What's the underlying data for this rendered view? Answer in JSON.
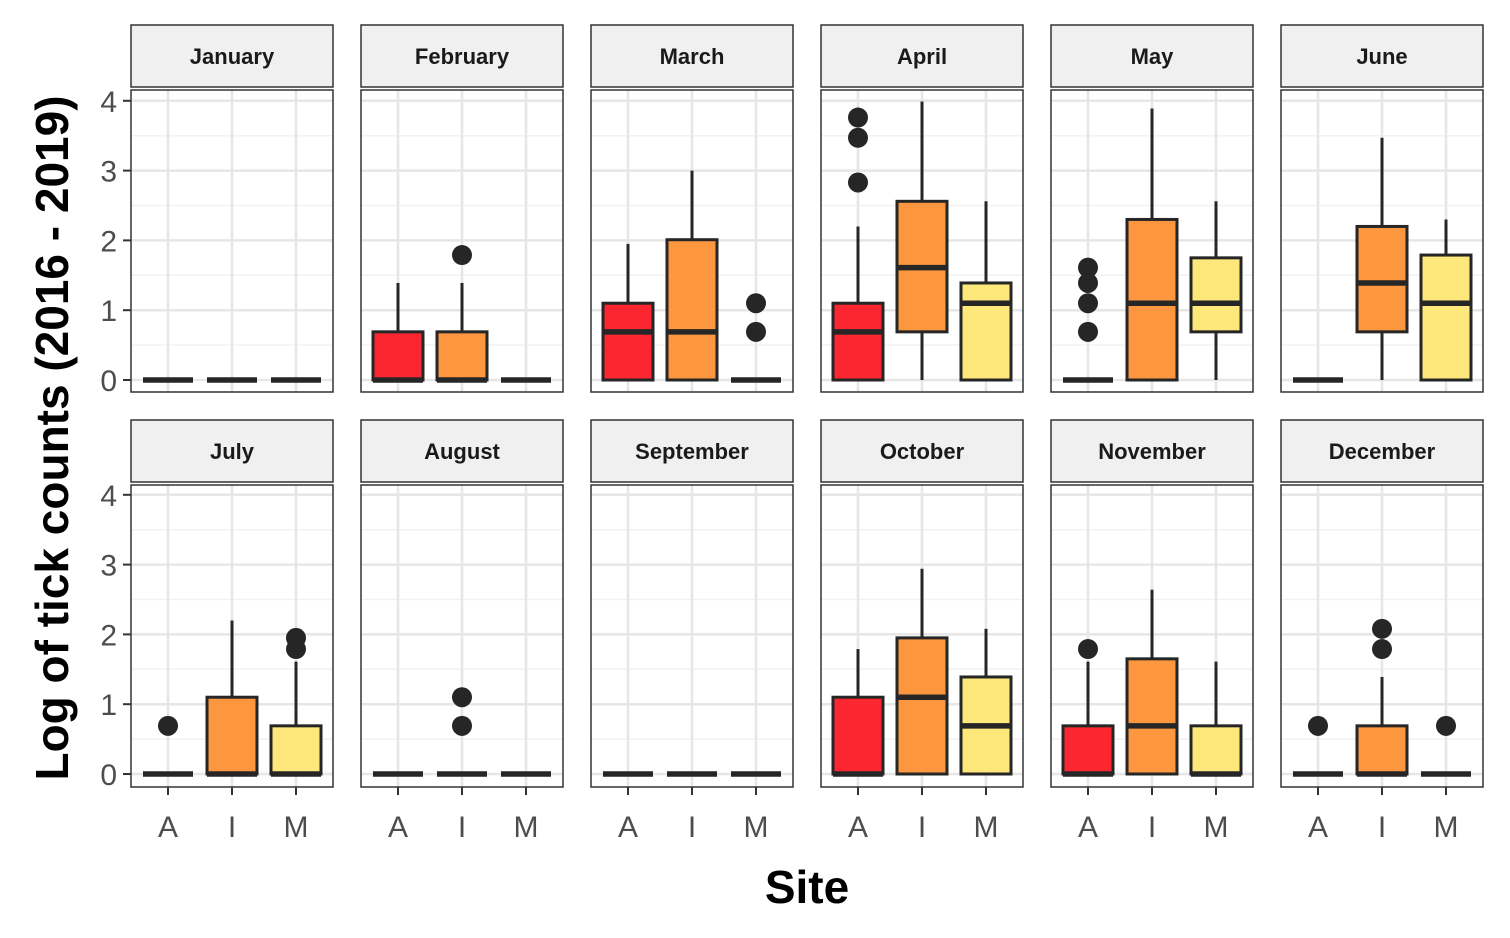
{
  "chart_data": {
    "type": "boxplot",
    "xlabel": "Site",
    "ylabel": "Log of tick counts (2016 - 2019)",
    "categories": [
      "A",
      "I",
      "M"
    ],
    "y_ticks": [
      0,
      1,
      2,
      3,
      4
    ],
    "ylim": [
      -0.1,
      4.15
    ],
    "colors": {
      "A": "#fb2630",
      "I": "#fc963f",
      "M": "#fee87c"
    },
    "grid": true,
    "panels": [
      {
        "month": "January",
        "boxes": [
          {
            "site": "A",
            "min": 0,
            "q1": 0,
            "median": 0,
            "q3": 0,
            "max": 0,
            "outliers": []
          },
          {
            "site": "I",
            "min": 0,
            "q1": 0,
            "median": 0,
            "q3": 0,
            "max": 0,
            "outliers": []
          },
          {
            "site": "M",
            "min": 0,
            "q1": 0,
            "median": 0,
            "q3": 0,
            "max": 0,
            "outliers": []
          }
        ]
      },
      {
        "month": "February",
        "boxes": [
          {
            "site": "A",
            "min": 0,
            "q1": 0,
            "median": 0,
            "q3": 0.69,
            "max": 1.39,
            "outliers": []
          },
          {
            "site": "I",
            "min": 0,
            "q1": 0,
            "median": 0,
            "q3": 0.69,
            "max": 1.39,
            "outliers": [
              1.79
            ]
          },
          {
            "site": "M",
            "min": 0,
            "q1": 0,
            "median": 0,
            "q3": 0,
            "max": 0,
            "outliers": []
          }
        ]
      },
      {
        "month": "March",
        "boxes": [
          {
            "site": "A",
            "min": 0,
            "q1": 0,
            "median": 0.69,
            "q3": 1.1,
            "max": 1.95,
            "outliers": []
          },
          {
            "site": "I",
            "min": 0,
            "q1": 0,
            "median": 0.69,
            "q3": 2.01,
            "max": 3.0,
            "outliers": []
          },
          {
            "site": "M",
            "min": 0,
            "q1": 0,
            "median": 0,
            "q3": 0,
            "max": 0,
            "outliers": [
              0.69,
              1.1
            ]
          }
        ]
      },
      {
        "month": "April",
        "boxes": [
          {
            "site": "A",
            "min": 0,
            "q1": 0,
            "median": 0.69,
            "q3": 1.1,
            "max": 2.2,
            "outliers": [
              2.83,
              3.47,
              3.76
            ]
          },
          {
            "site": "I",
            "min": 0,
            "q1": 0.69,
            "median": 1.61,
            "q3": 2.56,
            "max": 3.99,
            "outliers": []
          },
          {
            "site": "M",
            "min": 0,
            "q1": 0,
            "median": 1.1,
            "q3": 1.39,
            "max": 2.56,
            "outliers": []
          }
        ]
      },
      {
        "month": "May",
        "boxes": [
          {
            "site": "A",
            "min": 0,
            "q1": 0,
            "median": 0,
            "q3": 0,
            "max": 0,
            "outliers": [
              0.69,
              1.1,
              1.39,
              1.61
            ]
          },
          {
            "site": "I",
            "min": 0,
            "q1": 0,
            "median": 1.1,
            "q3": 2.3,
            "max": 3.89,
            "outliers": []
          },
          {
            "site": "M",
            "min": 0,
            "q1": 0.69,
            "median": 1.1,
            "q3": 1.75,
            "max": 2.56,
            "outliers": []
          }
        ]
      },
      {
        "month": "June",
        "boxes": [
          {
            "site": "A",
            "min": 0,
            "q1": 0,
            "median": 0,
            "q3": 0,
            "max": 0,
            "outliers": []
          },
          {
            "site": "I",
            "min": 0,
            "q1": 0.69,
            "median": 1.39,
            "q3": 2.2,
            "max": 3.47,
            "outliers": []
          },
          {
            "site": "M",
            "min": 0,
            "q1": 0,
            "median": 1.1,
            "q3": 1.79,
            "max": 2.3,
            "outliers": []
          }
        ]
      },
      {
        "month": "July",
        "boxes": [
          {
            "site": "A",
            "min": 0,
            "q1": 0,
            "median": 0,
            "q3": 0,
            "max": 0,
            "outliers": [
              0.69
            ]
          },
          {
            "site": "I",
            "min": 0,
            "q1": 0,
            "median": 0,
            "q3": 1.1,
            "max": 2.2,
            "outliers": []
          },
          {
            "site": "M",
            "min": 0,
            "q1": 0,
            "median": 0,
            "q3": 0.69,
            "max": 1.61,
            "outliers": [
              1.79,
              1.95
            ]
          }
        ]
      },
      {
        "month": "August",
        "boxes": [
          {
            "site": "A",
            "min": 0,
            "q1": 0,
            "median": 0,
            "q3": 0,
            "max": 0,
            "outliers": []
          },
          {
            "site": "I",
            "min": 0,
            "q1": 0,
            "median": 0,
            "q3": 0,
            "max": 0,
            "outliers": [
              0.69,
              1.1
            ]
          },
          {
            "site": "M",
            "min": 0,
            "q1": 0,
            "median": 0,
            "q3": 0,
            "max": 0,
            "outliers": []
          }
        ]
      },
      {
        "month": "September",
        "boxes": [
          {
            "site": "A",
            "min": 0,
            "q1": 0,
            "median": 0,
            "q3": 0,
            "max": 0,
            "outliers": []
          },
          {
            "site": "I",
            "min": 0,
            "q1": 0,
            "median": 0,
            "q3": 0,
            "max": 0,
            "outliers": []
          },
          {
            "site": "M",
            "min": 0,
            "q1": 0,
            "median": 0,
            "q3": 0,
            "max": 0,
            "outliers": []
          }
        ]
      },
      {
        "month": "October",
        "boxes": [
          {
            "site": "A",
            "min": 0,
            "q1": 0,
            "median": 0,
            "q3": 1.1,
            "max": 1.79,
            "outliers": []
          },
          {
            "site": "I",
            "min": 0,
            "q1": 0,
            "median": 1.1,
            "q3": 1.95,
            "max": 2.94,
            "outliers": []
          },
          {
            "site": "M",
            "min": 0,
            "q1": 0,
            "median": 0.69,
            "q3": 1.39,
            "max": 2.08,
            "outliers": []
          }
        ]
      },
      {
        "month": "November",
        "boxes": [
          {
            "site": "A",
            "min": 0,
            "q1": 0,
            "median": 0,
            "q3": 0.69,
            "max": 1.61,
            "outliers": [
              1.79
            ]
          },
          {
            "site": "I",
            "min": 0,
            "q1": 0,
            "median": 0.69,
            "q3": 1.65,
            "max": 2.64,
            "outliers": []
          },
          {
            "site": "M",
            "min": 0,
            "q1": 0,
            "median": 0,
            "q3": 0.69,
            "max": 1.61,
            "outliers": []
          }
        ]
      },
      {
        "month": "December",
        "boxes": [
          {
            "site": "A",
            "min": 0,
            "q1": 0,
            "median": 0,
            "q3": 0,
            "max": 0,
            "outliers": [
              0.69
            ]
          },
          {
            "site": "I",
            "min": 0,
            "q1": 0,
            "median": 0,
            "q3": 0.69,
            "max": 1.39,
            "outliers": [
              1.79,
              2.08
            ]
          },
          {
            "site": "M",
            "min": 0,
            "q1": 0,
            "median": 0,
            "q3": 0,
            "max": 0,
            "outliers": [
              0.69
            ]
          }
        ]
      }
    ]
  }
}
